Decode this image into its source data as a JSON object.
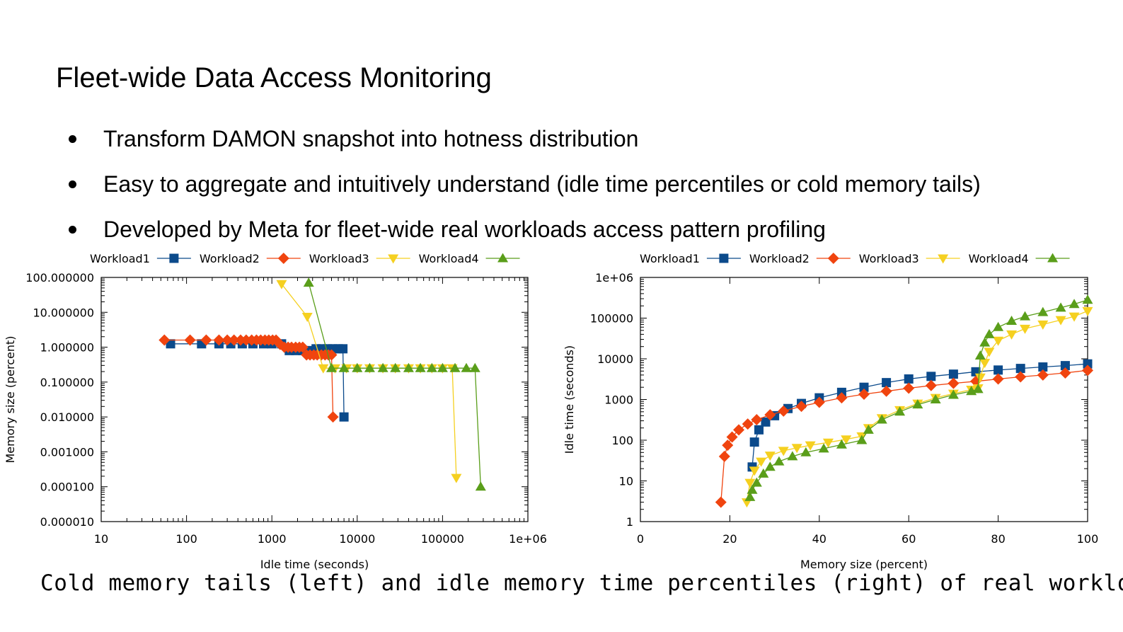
{
  "slide": {
    "title": "Fleet-wide Data Access Monitoring",
    "bullets": [
      "Transform DAMON snapshot into hotness distribution",
      "Easy to aggregate and intuitively understand (idle time percentiles or cold memory tails)",
      "Developed by Meta for fleet-wide real workloads access pattern profiling"
    ],
    "caption": "Cold memory tails (left) and idle memory time percentiles (right) of real workloads"
  },
  "colors": {
    "Workload1": "#0b4a8b",
    "Workload2": "#f0440f",
    "Workload3": "#f5d020",
    "Workload4": "#5a9e1a"
  },
  "chart_data": [
    {
      "type": "line",
      "title": "",
      "xlabel": "Idle time (seconds)",
      "ylabel": "Memory size (percent)",
      "xscale": "log",
      "yscale": "log",
      "xlim": [
        10,
        1000000
      ],
      "ylim": [
        1e-05,
        100
      ],
      "xticks": [
        "10",
        "100",
        "1000",
        "10000",
        "100000",
        "1e+06"
      ],
      "yticks": [
        "0.000010",
        "0.000100",
        "0.001000",
        "0.010000",
        "0.100000",
        "1.000000",
        "10.000000",
        "100.000000"
      ],
      "legend": "top",
      "grid": false,
      "series": [
        {
          "name": "Workload1",
          "marker": "square",
          "x": [
            65,
            150,
            240,
            330,
            450,
            600,
            800,
            1000,
            1300,
            1600,
            1900,
            2300,
            2800,
            3300,
            3900,
            4500,
            5200,
            6000,
            6800,
            7000
          ],
          "y": [
            1.25,
            1.25,
            1.25,
            1.25,
            1.25,
            1.25,
            1.25,
            1.25,
            1.25,
            0.8,
            0.8,
            0.8,
            0.8,
            0.9,
            0.9,
            0.9,
            0.9,
            0.9,
            0.9,
            0.01
          ]
        },
        {
          "name": "Workload2",
          "marker": "diamond",
          "x": [
            55,
            110,
            170,
            240,
            300,
            360,
            430,
            500,
            580,
            660,
            740,
            830,
            920,
            1020,
            1120,
            1250,
            1400,
            1550,
            1700,
            1900,
            2100,
            2300,
            2550,
            2800,
            3100,
            3400,
            3800,
            4200,
            4600,
            5000,
            5200
          ],
          "y": [
            1.6,
            1.6,
            1.6,
            1.6,
            1.6,
            1.6,
            1.6,
            1.6,
            1.6,
            1.6,
            1.6,
            1.6,
            1.6,
            1.6,
            1.6,
            1.2,
            1.0,
            1.0,
            1.0,
            1.0,
            1.0,
            1.0,
            0.6,
            0.6,
            0.6,
            0.6,
            0.6,
            0.6,
            0.6,
            0.6,
            0.01
          ]
        },
        {
          "name": "Workload3",
          "marker": "triangle-down",
          "x": [
            1300,
            2600,
            4000,
            5500,
            7500,
            10000,
            14000,
            20000,
            28000,
            40000,
            55000,
            75000,
            100000,
            130000,
            145000
          ],
          "y": [
            65,
            7.5,
            0.25,
            0.25,
            0.25,
            0.25,
            0.25,
            0.25,
            0.25,
            0.25,
            0.25,
            0.25,
            0.25,
            0.25,
            0.00018
          ]
        },
        {
          "name": "Workload4",
          "marker": "triangle-up",
          "x": [
            2700,
            5000,
            7000,
            10000,
            14000,
            20000,
            28000,
            40000,
            55000,
            75000,
            100000,
            140000,
            190000,
            240000,
            280000
          ],
          "y": [
            70,
            0.25,
            0.25,
            0.25,
            0.25,
            0.25,
            0.25,
            0.25,
            0.25,
            0.25,
            0.25,
            0.25,
            0.25,
            0.25,
            0.0001
          ]
        }
      ]
    },
    {
      "type": "line",
      "title": "",
      "xlabel": "Memory size (percent)",
      "ylabel": "Idle time (seconds)",
      "xscale": "linear",
      "yscale": "log",
      "xlim": [
        0,
        100
      ],
      "ylim": [
        1,
        1000000
      ],
      "xticks": [
        "0",
        "20",
        "40",
        "60",
        "80",
        "100"
      ],
      "yticks": [
        "1",
        "10",
        "100",
        "1000",
        "10000",
        "100000",
        "1e+06"
      ],
      "legend": "top",
      "grid": false,
      "series": [
        {
          "name": "Workload1",
          "marker": "square",
          "x": [
            25,
            25.5,
            26.5,
            28,
            30,
            33,
            36,
            40,
            45,
            50,
            55,
            60,
            65,
            70,
            75,
            80,
            85,
            90,
            95,
            100
          ],
          "y": [
            22,
            90,
            180,
            280,
            400,
            600,
            800,
            1100,
            1500,
            2000,
            2600,
            3200,
            3700,
            4200,
            4800,
            5300,
            5800,
            6300,
            6800,
            7500
          ]
        },
        {
          "name": "Workload2",
          "marker": "diamond",
          "x": [
            18,
            18.8,
            19.5,
            20.5,
            22,
            24,
            26,
            29,
            32,
            36,
            40,
            45,
            50,
            55,
            60,
            65,
            70,
            75,
            80,
            85,
            90,
            95,
            100
          ],
          "y": [
            3,
            40,
            75,
            120,
            180,
            250,
            320,
            420,
            520,
            680,
            850,
            1100,
            1350,
            1600,
            1900,
            2200,
            2500,
            2800,
            3200,
            3600,
            4000,
            4500,
            5200
          ]
        },
        {
          "name": "Workload3",
          "marker": "triangle-down",
          "x": [
            23.8,
            24.5,
            25.5,
            27,
            29,
            32,
            35,
            38,
            42,
            46,
            49.5,
            51,
            54,
            58,
            62,
            66,
            70,
            74,
            75.5,
            76,
            77,
            78,
            80,
            83,
            86,
            90,
            94,
            97,
            100
          ],
          "y": [
            3,
            9,
            18,
            30,
            42,
            55,
            65,
            75,
            88,
            105,
            125,
            200,
            350,
            550,
            800,
            1100,
            1400,
            1750,
            1900,
            3500,
            8000,
            15000,
            28000,
            40000,
            55000,
            70000,
            90000,
            110000,
            150000
          ]
        },
        {
          "name": "Workload4",
          "marker": "triangle-up",
          "x": [
            24.5,
            25,
            26,
            27.5,
            29,
            31,
            34,
            37,
            41,
            45,
            49.5,
            51,
            54,
            58,
            62,
            66,
            70,
            74,
            75.5,
            76,
            77,
            78,
            80,
            83,
            86,
            90,
            94,
            97,
            100
          ],
          "y": [
            4,
            6,
            9,
            15,
            22,
            30,
            40,
            50,
            62,
            78,
            100,
            180,
            320,
            500,
            750,
            1000,
            1300,
            1600,
            1800,
            12000,
            25000,
            40000,
            60000,
            85000,
            110000,
            140000,
            180000,
            220000,
            280000
          ]
        }
      ]
    }
  ]
}
